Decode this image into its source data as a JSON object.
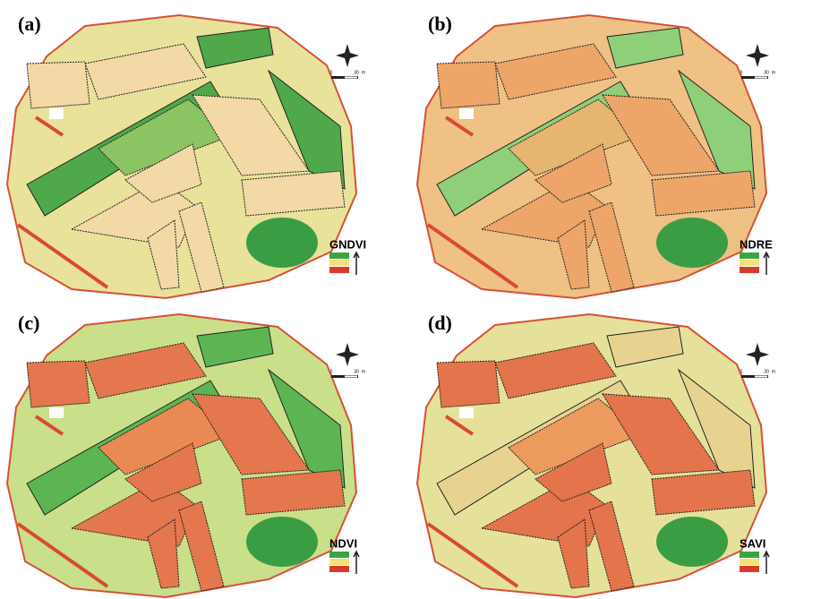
{
  "panels": [
    {
      "label": "(a)",
      "index": "GNDVI",
      "colors": {
        "base": "#e9e29a",
        "light": "#f3d9a6",
        "dark": "#4fa84a",
        "mid": "#8cc464"
      }
    },
    {
      "label": "(b)",
      "index": "NDRE",
      "colors": {
        "base": "#efc184",
        "light": "#eea56a",
        "dark": "#8fcf7a",
        "mid": "#e6b56f"
      }
    },
    {
      "label": "(c)",
      "index": "NDVI",
      "colors": {
        "base": "#c9df8a",
        "light": "#e4774e",
        "dark": "#5cb552",
        "mid": "#e98a55"
      }
    },
    {
      "label": "(d)",
      "index": "SAVI",
      "colors": {
        "base": "#e5e19a",
        "light": "#e3744b",
        "dark": "#e7d38f",
        "mid": "#ec9a5e"
      }
    }
  ],
  "scale_labels": [
    "0",
    "30",
    "m"
  ],
  "legend_colors": [
    "#3aa640",
    "#f2e27a",
    "#d93b2b"
  ]
}
